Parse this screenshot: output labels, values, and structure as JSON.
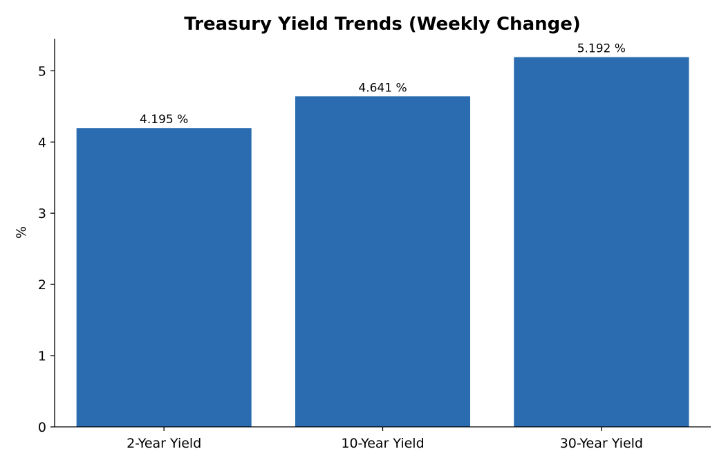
{
  "chart_data": {
    "type": "bar",
    "title": "Treasury Yield Trends (Weekly Change)",
    "xlabel": "",
    "ylabel": "%",
    "categories": [
      "2-Year Yield",
      "10-Year Yield",
      "30-Year Yield"
    ],
    "values": [
      4.195,
      4.641,
      5.192
    ],
    "value_labels": [
      "4.195 %",
      "4.641 %",
      "5.192 %"
    ],
    "ylim": [
      0,
      5.45
    ],
    "yticks": [
      0,
      1,
      2,
      3,
      4,
      5
    ],
    "ytick_labels": [
      "0",
      "1",
      "2",
      "3",
      "4",
      "5"
    ],
    "grid": false,
    "bar_color": "#2b6cb0",
    "spines": "left-bottom"
  }
}
